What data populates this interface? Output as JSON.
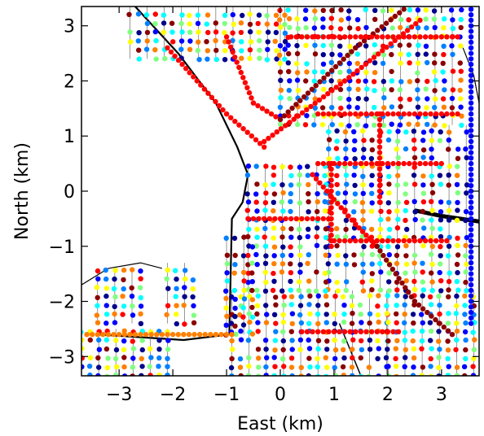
{
  "chart_data": {
    "type": "scatter",
    "title": "",
    "xlabel": "East (km)",
    "ylabel": "North (km)",
    "xlim": [
      -3.7,
      3.7
    ],
    "ylim": [
      -3.35,
      3.35
    ],
    "xticks": [
      -3,
      -2,
      -1,
      0,
      1,
      2,
      3
    ],
    "yticks": [
      -3,
      -2,
      -1,
      0,
      1,
      2,
      3
    ],
    "xtick_labels": [
      "−3",
      "−2",
      "−1",
      "0",
      "1",
      "2",
      "3"
    ],
    "ytick_labels": [
      "−3",
      "−2",
      "−1",
      "0",
      "1",
      "2",
      "3"
    ],
    "grid": false,
    "legend": "none",
    "colormap": [
      "#00008b",
      "#0000ff",
      "#0080ff",
      "#00ffff",
      "#80ff80",
      "#ffff00",
      "#ff8000",
      "#ff0000",
      "#8b0000"
    ],
    "road_color": "#000000",
    "marker_size_km": 0.085,
    "regions": [
      {
        "name": "northwest-grid",
        "x": [
          -2.8,
          0.1
        ],
        "y": [
          2.4,
          3.35
        ],
        "step": 0.16
      },
      {
        "name": "north-grid",
        "x": [
          0.0,
          3.5
        ],
        "y": [
          1.2,
          3.35
        ],
        "step": 0.16
      },
      {
        "name": "central-east-grid",
        "x": [
          0.9,
          3.6
        ],
        "y": [
          -1.8,
          1.2
        ],
        "step": 0.16
      },
      {
        "name": "central-grid",
        "x": [
          -0.6,
          0.9
        ],
        "y": [
          -1.8,
          0.5
        ],
        "step": 0.16
      },
      {
        "name": "south-grid",
        "x": [
          -0.9,
          2.0
        ],
        "y": [
          -3.35,
          -1.8
        ],
        "step": 0.16
      },
      {
        "name": "southeast-grid",
        "x": [
          2.0,
          3.6
        ],
        "y": [
          -3.35,
          -1.8
        ],
        "step": 0.16
      },
      {
        "name": "southwest-grid",
        "x": [
          -3.7,
          -2.0
        ],
        "y": [
          -3.35,
          -2.5
        ],
        "step": 0.16
      },
      {
        "name": "west-pocket-a",
        "x": [
          -3.4,
          -2.6
        ],
        "y": [
          -2.4,
          -1.4
        ],
        "step": 0.16
      },
      {
        "name": "west-pocket-b",
        "x": [
          -2.1,
          -1.5
        ],
        "y": [
          -2.4,
          -1.3
        ],
        "step": 0.16
      },
      {
        "name": "mid-pocket",
        "x": [
          -1.0,
          -0.5
        ],
        "y": [
          -2.6,
          -0.8
        ],
        "step": 0.16
      }
    ],
    "streets": [
      {
        "name": "diagonal-avenue-1",
        "points": [
          [
            -2.1,
            2.6
          ],
          [
            -1.0,
            1.4
          ],
          [
            -0.3,
            0.8
          ]
        ],
        "color": "#ff0000"
      },
      {
        "name": "diagonal-avenue-2",
        "points": [
          [
            -1.0,
            2.8
          ],
          [
            -0.5,
            1.6
          ],
          [
            0.0,
            1.3
          ]
        ],
        "color": "#ff0000"
      },
      {
        "name": "diagonal-avenue-3",
        "points": [
          [
            -0.3,
            0.9
          ],
          [
            1.2,
            2.0
          ],
          [
            2.6,
            3.1
          ]
        ],
        "color": "#ff0000"
      },
      {
        "name": "diagonal-avenue-4",
        "points": [
          [
            0.0,
            1.3
          ],
          [
            1.4,
            2.6
          ],
          [
            2.3,
            3.3
          ]
        ],
        "color": "#8b0000"
      },
      {
        "name": "diagonal-avenue-5",
        "points": [
          [
            0.6,
            0.3
          ],
          [
            1.4,
            -0.6
          ],
          [
            1.8,
            -1.0
          ]
        ],
        "color": "#ff0000"
      },
      {
        "name": "diagonal-avenue-6",
        "points": [
          [
            1.8,
            -1.0
          ],
          [
            2.5,
            -2.0
          ],
          [
            3.2,
            -2.6
          ]
        ],
        "color": "#8b0000"
      },
      {
        "name": "horizontal-street-1",
        "points": [
          [
            0.2,
            2.8
          ],
          [
            3.3,
            2.8
          ]
        ],
        "color": "#ff0000"
      },
      {
        "name": "horizontal-street-2",
        "points": [
          [
            0.7,
            1.4
          ],
          [
            3.3,
            1.4
          ]
        ],
        "color": "#ff0000"
      },
      {
        "name": "horizontal-street-3",
        "points": [
          [
            0.7,
            0.5
          ],
          [
            3.0,
            0.5
          ]
        ],
        "color": "#ff0000"
      },
      {
        "name": "horizontal-street-4",
        "points": [
          [
            -0.6,
            -0.5
          ],
          [
            0.9,
            -0.5
          ]
        ],
        "color": "#ff0000"
      },
      {
        "name": "horizontal-street-5",
        "points": [
          [
            1.0,
            -0.9
          ],
          [
            3.1,
            -0.9
          ]
        ],
        "color": "#ff0000"
      },
      {
        "name": "horizontal-street-6",
        "points": [
          [
            0.4,
            -2.55
          ],
          [
            2.2,
            -2.55
          ]
        ],
        "color": "#ff0000"
      },
      {
        "name": "horizontal-street-7",
        "points": [
          [
            -3.6,
            -2.6
          ],
          [
            -0.9,
            -2.6
          ]
        ],
        "color": "#ff8000"
      },
      {
        "name": "vertical-street-1",
        "points": [
          [
            1.85,
            1.4
          ],
          [
            1.85,
            -0.2
          ]
        ],
        "color": "#ff0000"
      },
      {
        "name": "vertical-street-2",
        "points": [
          [
            0.95,
            0.5
          ],
          [
            0.95,
            -1.0
          ]
        ],
        "color": "#ff0000"
      },
      {
        "name": "vertical-street-3",
        "points": [
          [
            3.55,
            3.3
          ],
          [
            3.55,
            -2.4
          ]
        ],
        "color": "#0000ff"
      }
    ],
    "roads": [
      {
        "name": "coast-road",
        "points": [
          [
            -2.7,
            3.35
          ],
          [
            -1.9,
            2.5
          ],
          [
            -1.2,
            1.6
          ],
          [
            -0.8,
            0.8
          ],
          [
            -0.6,
            0.3
          ],
          [
            -0.7,
            -0.2
          ],
          [
            -0.9,
            -0.5
          ],
          [
            -0.95,
            -2.6
          ],
          [
            -1.8,
            -2.7
          ],
          [
            -3.4,
            -2.6
          ]
        ],
        "width": 2.2
      },
      {
        "name": "east-highway",
        "points": [
          [
            2.5,
            -0.35
          ],
          [
            3.0,
            -0.45
          ],
          [
            3.7,
            -0.55
          ]
        ],
        "width": 5
      },
      {
        "name": "southeast-road",
        "points": [
          [
            1.1,
            -2.4
          ],
          [
            1.5,
            -3.35
          ]
        ],
        "width": 1.5
      },
      {
        "name": "southwest-bay-road",
        "points": [
          [
            -3.7,
            -1.7
          ],
          [
            -3.2,
            -1.4
          ],
          [
            -2.6,
            -1.3
          ],
          [
            -2.2,
            -1.4
          ]
        ],
        "width": 1.2
      },
      {
        "name": "far-east-road",
        "points": [
          [
            3.4,
            2.6
          ],
          [
            3.6,
            2.1
          ],
          [
            3.7,
            1.6
          ]
        ],
        "width": 1.2
      }
    ]
  }
}
